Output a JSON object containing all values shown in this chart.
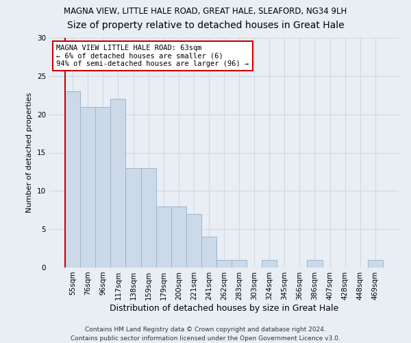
{
  "title1": "MAGNA VIEW, LITTLE HALE ROAD, GREAT HALE, SLEAFORD, NG34 9LH",
  "title2": "Size of property relative to detached houses in Great Hale",
  "xlabel": "Distribution of detached houses by size in Great Hale",
  "ylabel": "Number of detached properties",
  "categories": [
    "55sqm",
    "76sqm",
    "96sqm",
    "117sqm",
    "138sqm",
    "159sqm",
    "179sqm",
    "200sqm",
    "221sqm",
    "241sqm",
    "262sqm",
    "283sqm",
    "303sqm",
    "324sqm",
    "345sqm",
    "366sqm",
    "386sqm",
    "407sqm",
    "428sqm",
    "448sqm",
    "469sqm"
  ],
  "values": [
    23,
    21,
    21,
    22,
    13,
    13,
    8,
    8,
    7,
    4,
    1,
    1,
    0,
    1,
    0,
    0,
    1,
    0,
    0,
    0,
    1
  ],
  "bar_color": "#ccd9e8",
  "bar_edge_color": "#9ab4cc",
  "annotation_text": "MAGNA VIEW LITTLE HALE ROAD: 63sqm\n← 6% of detached houses are smaller (6)\n94% of semi-detached houses are larger (96) →",
  "annotation_box_color": "#ffffff",
  "annotation_box_edge_color": "#cc0000",
  "vline_color": "#cc0000",
  "ylim": [
    0,
    30
  ],
  "yticks": [
    0,
    5,
    10,
    15,
    20,
    25,
    30
  ],
  "footnote": "Contains HM Land Registry data © Crown copyright and database right 2024.\nContains public sector information licensed under the Open Government Licence v3.0.",
  "background_color": "#e8eef4",
  "grid_color": "#d0d8e0",
  "title1_fontsize": 8.5,
  "title2_fontsize": 10,
  "xlabel_fontsize": 9,
  "ylabel_fontsize": 8,
  "tick_fontsize": 7.5,
  "footnote_fontsize": 6.5,
  "annotation_fontsize": 7.5
}
